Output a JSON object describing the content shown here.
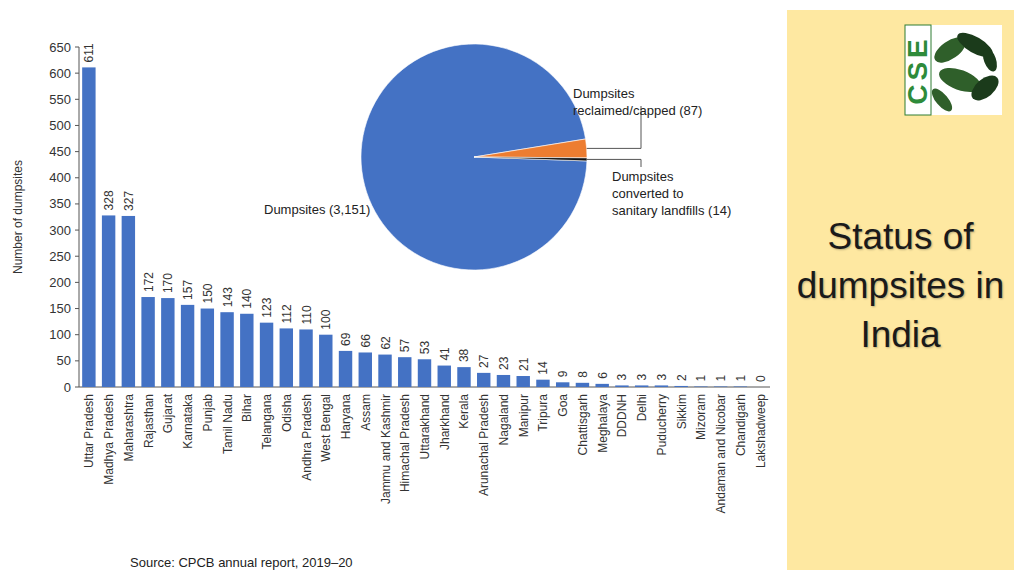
{
  "chart_data": [
    {
      "type": "bar",
      "y_label": "Number of dumpsites",
      "categories": [
        "Uttar Pradesh",
        "Madhya Pradesh",
        "Maharashtra",
        "Rajasthan",
        "Gujarat",
        "Karnataka",
        "Punjab",
        "Tamil Nadu",
        "Bihar",
        "Telangana",
        "Odisha",
        "Andhra Pradesh",
        "West Bengal",
        "Haryana",
        "Assam",
        "Jammu and Kashmir",
        "Himachal Pradesh",
        "Uttarakhand",
        "Jharkhand",
        "Kerala",
        "Arunachal Pradesh",
        "Nagaland",
        "Manipur",
        "Tripura",
        "Goa",
        "Chattisgarh",
        "Meghalaya",
        "DDDNH",
        "Delhi",
        "Puducherry",
        "Sikkim",
        "Mizoram",
        "Andaman and Nicobar",
        "Chandigarh",
        "Lakshadweep"
      ],
      "values": [
        611,
        328,
        327,
        172,
        170,
        157,
        150,
        143,
        140,
        123,
        112,
        110,
        100,
        69,
        66,
        62,
        57,
        53,
        41,
        38,
        27,
        23,
        21,
        14,
        9,
        8,
        6,
        3,
        3,
        3,
        2,
        1,
        1,
        1,
        0
      ],
      "color": "#4472c4",
      "ylim": [
        0,
        650
      ],
      "yticks": [
        0,
        50,
        100,
        150,
        200,
        250,
        300,
        350,
        400,
        450,
        500,
        550,
        600,
        650
      ],
      "grid": false,
      "data_labels": true
    },
    {
      "type": "pie",
      "categories": [
        "Dumpsites (3,151)",
        "Dumpsites reclaimed/capped (87)",
        "Dumpsites converted to sanitary landfills (14)"
      ],
      "values": [
        3151,
        87,
        14
      ],
      "colors": [
        "#4472c4",
        "#ed7d31",
        "#111111"
      ]
    }
  ],
  "title": "Status of dumpsites in India",
  "source": "Source: CPCB annual report, 2019–20",
  "logo": "CSE"
}
